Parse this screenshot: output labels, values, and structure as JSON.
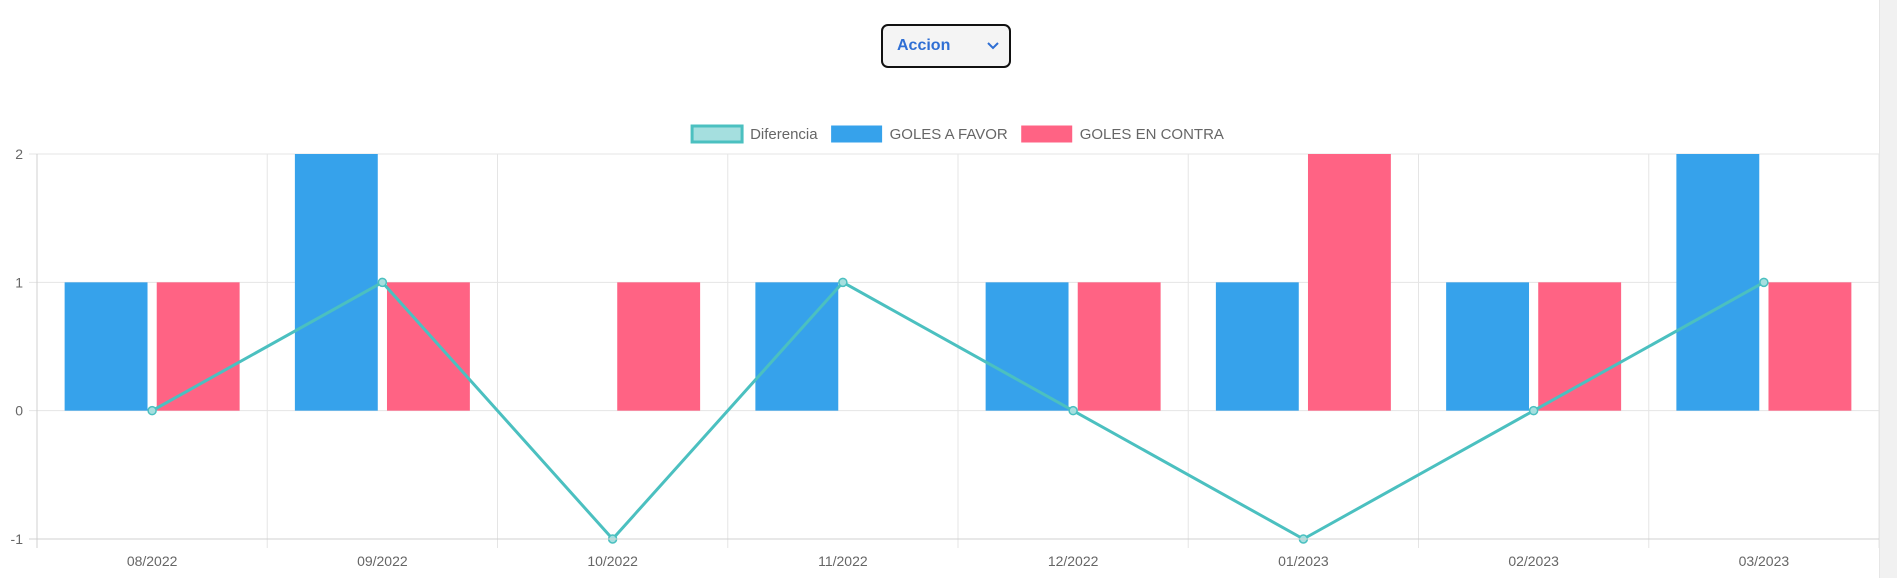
{
  "dropdown": {
    "selected": "Accion",
    "icon": "chevron-down-icon"
  },
  "colors": {
    "diferencia": "#4bc0c0",
    "diferencia_fill": "#a5dfdf",
    "goles_a_favor": "#36a2eb",
    "goles_en_contra": "#ff6384",
    "grid": "#e5e5e5",
    "text": "#666666"
  },
  "chart_data": {
    "type": "bar",
    "categories": [
      "08/2022",
      "09/2022",
      "10/2022",
      "11/2022",
      "12/2022",
      "01/2023",
      "02/2023",
      "03/2023"
    ],
    "series": [
      {
        "name": "Diferencia",
        "type": "line",
        "values": [
          0,
          1,
          -1,
          1,
          0,
          -1,
          0,
          1
        ]
      },
      {
        "name": "GOLES A FAVOR",
        "type": "bar",
        "values": [
          1,
          2,
          0,
          1,
          1,
          1,
          1,
          2
        ]
      },
      {
        "name": "GOLES EN CONTRA",
        "type": "bar",
        "values": [
          1,
          1,
          1,
          0,
          1,
          2,
          1,
          1
        ]
      }
    ],
    "ylim": [
      -1,
      2
    ],
    "yticks": [
      "2",
      "1",
      "0",
      "-1"
    ],
    "grid": true,
    "legend_position": "top"
  }
}
